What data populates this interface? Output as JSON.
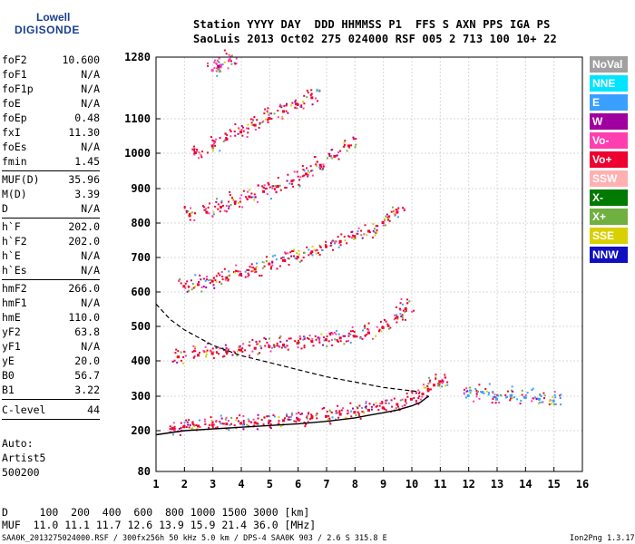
{
  "logo": {
    "line1": "Lowell",
    "line2": "DIGISONDE"
  },
  "header": {
    "row1": "Station YYYY DAY  DDD HHMMSS P1  FFS S AXN PPS IGA PS",
    "row2": "SaoLuis 2013 Oct02 275 024000 RSF 005 2 713 100 10+ 22"
  },
  "params_group1": [
    {
      "name": "foF2",
      "value": "10.600"
    },
    {
      "name": "foF1",
      "value": "N/A"
    },
    {
      "name": "foF1p",
      "value": "N/A"
    },
    {
      "name": "foE",
      "value": "N/A"
    },
    {
      "name": "foEp",
      "value": "0.48"
    },
    {
      "name": "fxI",
      "value": "11.30"
    },
    {
      "name": "foEs",
      "value": "N/A"
    },
    {
      "name": "fmin",
      "value": "1.45"
    }
  ],
  "params_group2": [
    {
      "name": "MUF(D)",
      "value": "35.96"
    },
    {
      "name": "M(D)",
      "value": "3.39"
    },
    {
      "name": "D",
      "value": "N/A"
    }
  ],
  "params_group3": [
    {
      "name": "h`F",
      "value": "202.0"
    },
    {
      "name": "h`F2",
      "value": "202.0"
    },
    {
      "name": "h`E",
      "value": "N/A"
    },
    {
      "name": "h`Es",
      "value": "N/A"
    }
  ],
  "params_group4": [
    {
      "name": "hmF2",
      "value": "266.0"
    },
    {
      "name": "hmF1",
      "value": "N/A"
    },
    {
      "name": "hmE",
      "value": "110.0"
    },
    {
      "name": "yF2",
      "value": "63.8"
    },
    {
      "name": "yF1",
      "value": "N/A"
    },
    {
      "name": "yE",
      "value": "20.0"
    },
    {
      "name": "B0",
      "value": "56.7"
    },
    {
      "name": "B1",
      "value": "3.22"
    }
  ],
  "clevel": {
    "name": "C-level",
    "value": "44"
  },
  "auto": {
    "line1": "Auto:",
    "line2": "Artist5",
    "line3": "500200"
  },
  "footer": {
    "row1": "D     100  200  400  600  800 1000 1500 3000 [km]",
    "row2": "MUF  11.0 11.1 11.7 12.6 13.9 15.9 21.4 36.0 [MHz]",
    "file": "SAA0K_2013275024000.RSF / 300fx256h 50 kHz 5.0 km / DPS-4 SAA0K 903 / 2.6 S 315.8 E",
    "version": "Ion2Png 1.3.17"
  },
  "legend": [
    {
      "label": "NoVal",
      "color": "#a0a0a0"
    },
    {
      "label": "NNE",
      "color": "#00e5ff"
    },
    {
      "label": "E",
      "color": "#3aa0ff"
    },
    {
      "label": "W",
      "color": "#a000a0"
    },
    {
      "label": "Vo-",
      "color": "#ff3fb0"
    },
    {
      "label": "Vo+",
      "color": "#ee0030"
    },
    {
      "label": "SSW",
      "color": "#ffb0b0"
    },
    {
      "label": "X-",
      "color": "#007a00"
    },
    {
      "label": "X+",
      "color": "#6fb040"
    },
    {
      "label": "SSE",
      "color": "#d8d000"
    },
    {
      "label": "NNW",
      "color": "#1010c0"
    }
  ],
  "chart_data": {
    "type": "scatter",
    "title": "",
    "xlabel": "",
    "ylabel": "",
    "x_ticks": [
      1,
      2,
      3,
      4,
      5,
      6,
      7,
      8,
      9,
      10,
      11,
      12,
      13,
      14,
      15,
      16
    ],
    "y_ticks": [
      80,
      200,
      300,
      400,
      500,
      600,
      700,
      800,
      900,
      1000,
      1100,
      1280
    ],
    "xlim": [
      1,
      16
    ],
    "ylim": [
      80,
      1280
    ],
    "grid": true,
    "legend_placement": "right",
    "series": [
      {
        "color_ref": "Vo+",
        "x": [
          1.6,
          2.0,
          2.5,
          3.0,
          3.5,
          4.0,
          4.5,
          5.0,
          5.5,
          6.0,
          6.5,
          7.0,
          7.5,
          8.0,
          8.5,
          9.0,
          9.5,
          10.0,
          10.4,
          10.8,
          11.0
        ],
        "y": [
          205,
          210,
          212,
          215,
          218,
          220,
          222,
          225,
          228,
          232,
          236,
          240,
          246,
          252,
          258,
          265,
          275,
          290,
          305,
          330,
          340
        ]
      },
      {
        "color_ref": "Vo+",
        "x": [
          1.8,
          2.5,
          3.0,
          3.5,
          4.0,
          4.5,
          5.0,
          5.5,
          6.0,
          6.5,
          7.0,
          7.5,
          8.0,
          8.5,
          9.0,
          9.5,
          9.8
        ],
        "y": [
          410,
          415,
          420,
          425,
          430,
          435,
          440,
          445,
          450,
          455,
          460,
          465,
          470,
          480,
          495,
          525,
          550
        ]
      },
      {
        "color_ref": "Vo+",
        "x": [
          2.0,
          2.5,
          3.0,
          3.5,
          4.0,
          4.5,
          5.0,
          5.5,
          6.0,
          6.5,
          7.0,
          7.5,
          8.0,
          8.5,
          9.0,
          9.5
        ],
        "y": [
          615,
          620,
          630,
          640,
          650,
          665,
          680,
          690,
          700,
          715,
          730,
          745,
          760,
          775,
          800,
          830
        ]
      },
      {
        "color_ref": "Vo+",
        "x": [
          2.2,
          2.8,
          3.3,
          3.8,
          4.3,
          4.8,
          5.3,
          5.8,
          6.3,
          6.8,
          7.3,
          7.8
        ],
        "y": [
          820,
          830,
          845,
          860,
          875,
          890,
          905,
          920,
          940,
          965,
          990,
          1020
        ]
      },
      {
        "color_ref": "Vo+",
        "x": [
          2.4,
          3.0,
          3.5,
          4.0,
          4.5,
          5.0,
          5.5,
          6.0,
          6.5
        ],
        "y": [
          1000,
          1020,
          1040,
          1060,
          1080,
          1100,
          1120,
          1140,
          1160
        ]
      },
      {
        "color_ref": "Vo-",
        "x": [
          3.0,
          3.3,
          3.6
        ],
        "y": [
          1240,
          1255,
          1270
        ]
      },
      {
        "color_ref": "E",
        "x": [
          12.0,
          12.5,
          13.0,
          13.5,
          14.0,
          14.5,
          15.0
        ],
        "y": [
          300,
          310,
          290,
          300,
          295,
          290,
          285
        ]
      }
    ],
    "model_profile": {
      "x": [
        1.0,
        2.0,
        3.0,
        4.0,
        5.0,
        6.0,
        7.0,
        8.0,
        8.5,
        9.0,
        9.5,
        10.0,
        10.3,
        10.5,
        10.6
      ],
      "y": [
        188,
        200,
        205,
        210,
        215,
        220,
        227,
        237,
        245,
        252,
        260,
        272,
        282,
        295,
        300
      ]
    },
    "dashed_profile": {
      "x": [
        1.0,
        1.5,
        2.0,
        3.0,
        4.0,
        5.0,
        6.0,
        7.0,
        8.0,
        9.0,
        9.5,
        10.0,
        10.3
      ],
      "y": [
        565,
        520,
        490,
        445,
        415,
        395,
        375,
        355,
        340,
        325,
        320,
        315,
        312
      ]
    }
  }
}
